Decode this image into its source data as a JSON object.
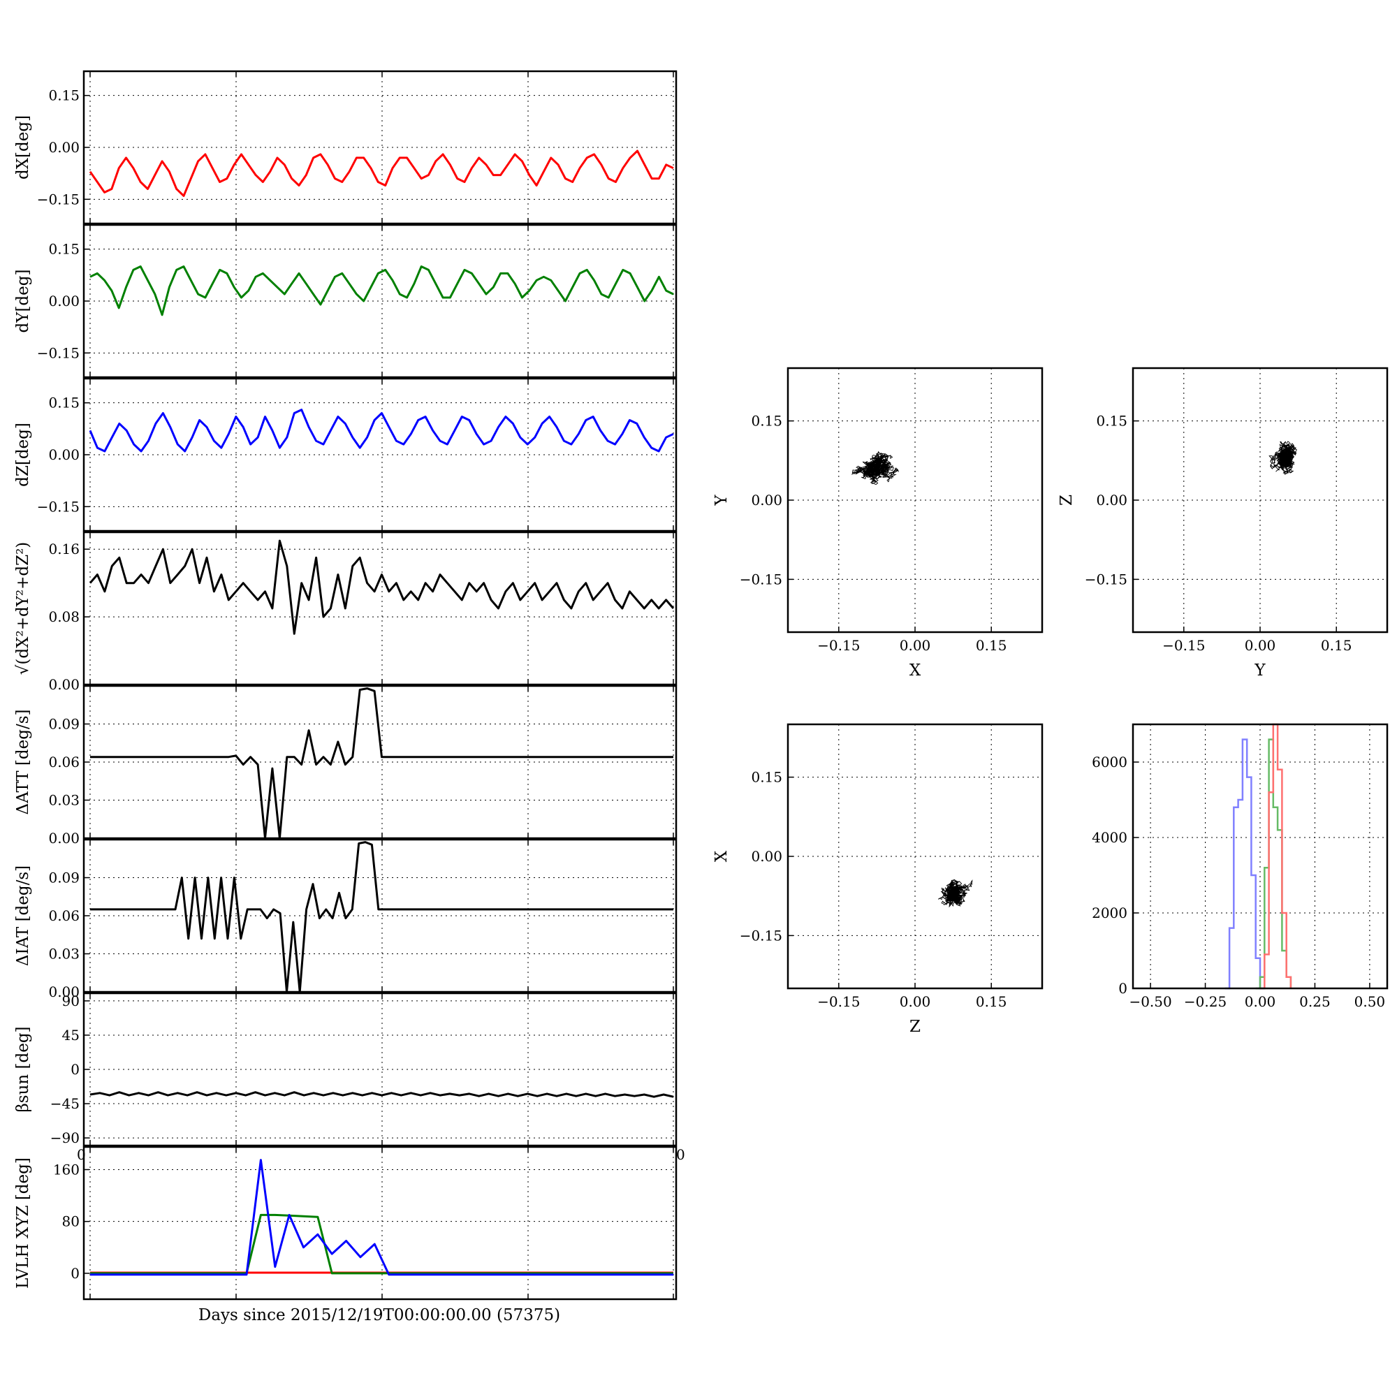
{
  "figure": {
    "xlabel_text": "Days since 2015/12/19T00:00:00.00 (57375)",
    "overlap_tick_left": "0",
    "overlap_tick_right": "0"
  },
  "chart_data": [
    {
      "id": "dX",
      "type": "line",
      "ylabel": "dX[deg]",
      "ylim": [
        -0.22,
        0.22
      ],
      "yticks": [
        0.15,
        0.0,
        -0.15
      ],
      "ytick_labels": [
        "0.15",
        "0.00",
        "−0.15"
      ],
      "grid": true,
      "color": "#ff0000",
      "series": [
        {
          "color": "#ff0000",
          "y": [
            -0.07,
            -0.1,
            -0.13,
            -0.12,
            -0.06,
            -0.03,
            -0.06,
            -0.1,
            -0.12,
            -0.08,
            -0.04,
            -0.07,
            -0.12,
            -0.14,
            -0.09,
            -0.04,
            -0.02,
            -0.06,
            -0.1,
            -0.09,
            -0.05,
            -0.02,
            -0.05,
            -0.08,
            -0.1,
            -0.07,
            -0.03,
            -0.05,
            -0.09,
            -0.11,
            -0.08,
            -0.03,
            -0.02,
            -0.05,
            -0.09,
            -0.1,
            -0.07,
            -0.03,
            -0.03,
            -0.06,
            -0.1,
            -0.11,
            -0.06,
            -0.03,
            -0.03,
            -0.06,
            -0.09,
            -0.08,
            -0.04,
            -0.02,
            -0.05,
            -0.09,
            -0.1,
            -0.06,
            -0.03,
            -0.05,
            -0.08,
            -0.08,
            -0.05,
            -0.02,
            -0.04,
            -0.08,
            -0.11,
            -0.07,
            -0.03,
            -0.05,
            -0.09,
            -0.1,
            -0.06,
            -0.03,
            -0.02,
            -0.05,
            -0.09,
            -0.1,
            -0.06,
            -0.03,
            -0.01,
            -0.05,
            -0.09,
            -0.09,
            -0.05,
            -0.06
          ]
        }
      ]
    },
    {
      "id": "dY",
      "type": "line",
      "ylabel": "dY[deg]",
      "ylim": [
        -0.22,
        0.22
      ],
      "yticks": [
        0.15,
        0.0,
        -0.15
      ],
      "ytick_labels": [
        "0.15",
        "0.00",
        "−0.15"
      ],
      "grid": true,
      "color": "#008000",
      "series": [
        {
          "color": "#008000",
          "y": [
            0.07,
            0.08,
            0.06,
            0.03,
            -0.02,
            0.04,
            0.09,
            0.1,
            0.06,
            0.02,
            -0.04,
            0.04,
            0.09,
            0.1,
            0.06,
            0.02,
            0.01,
            0.05,
            0.09,
            0.08,
            0.04,
            0.01,
            0.03,
            0.07,
            0.08,
            0.06,
            0.04,
            0.02,
            0.05,
            0.08,
            0.05,
            0.02,
            -0.01,
            0.03,
            0.07,
            0.08,
            0.05,
            0.02,
            0.0,
            0.04,
            0.08,
            0.09,
            0.06,
            0.02,
            0.01,
            0.05,
            0.1,
            0.09,
            0.05,
            0.01,
            0.01,
            0.05,
            0.09,
            0.08,
            0.05,
            0.02,
            0.04,
            0.08,
            0.08,
            0.05,
            0.01,
            0.03,
            0.06,
            0.07,
            0.06,
            0.03,
            0.0,
            0.04,
            0.08,
            0.09,
            0.06,
            0.02,
            0.01,
            0.05,
            0.09,
            0.08,
            0.04,
            0.0,
            0.03,
            0.07,
            0.03,
            0.02
          ]
        }
      ]
    },
    {
      "id": "dZ",
      "type": "line",
      "ylabel": "dZ[deg]",
      "ylim": [
        -0.22,
        0.22
      ],
      "yticks": [
        0.15,
        0.0,
        -0.15
      ],
      "ytick_labels": [
        "0.15",
        "0.00",
        "−0.15"
      ],
      "grid": true,
      "color": "#0000ff",
      "series": [
        {
          "color": "#0000ff",
          "y": [
            0.07,
            0.02,
            0.01,
            0.05,
            0.09,
            0.07,
            0.03,
            0.01,
            0.04,
            0.09,
            0.12,
            0.08,
            0.03,
            0.01,
            0.05,
            0.1,
            0.08,
            0.04,
            0.02,
            0.06,
            0.11,
            0.08,
            0.03,
            0.05,
            0.11,
            0.07,
            0.02,
            0.05,
            0.12,
            0.13,
            0.08,
            0.04,
            0.03,
            0.07,
            0.11,
            0.09,
            0.05,
            0.02,
            0.05,
            0.1,
            0.12,
            0.08,
            0.04,
            0.03,
            0.06,
            0.1,
            0.11,
            0.07,
            0.04,
            0.03,
            0.07,
            0.11,
            0.1,
            0.06,
            0.03,
            0.04,
            0.08,
            0.11,
            0.09,
            0.05,
            0.03,
            0.05,
            0.09,
            0.11,
            0.08,
            0.04,
            0.03,
            0.06,
            0.1,
            0.11,
            0.07,
            0.04,
            0.03,
            0.06,
            0.1,
            0.09,
            0.05,
            0.02,
            0.01,
            0.05,
            0.06
          ]
        }
      ]
    },
    {
      "id": "dRSS",
      "type": "line",
      "ylabel": "√(dX²+dY²+dZ²)",
      "ylim": [
        0.0,
        0.18
      ],
      "yticks": [
        0.16,
        0.08,
        0.0
      ],
      "ytick_labels": [
        "0.16",
        "0.08",
        "0.00"
      ],
      "grid": true,
      "color": "#000000",
      "series": [
        {
          "color": "#000000",
          "y": [
            0.12,
            0.13,
            0.11,
            0.14,
            0.15,
            0.12,
            0.12,
            0.13,
            0.12,
            0.14,
            0.16,
            0.12,
            0.13,
            0.14,
            0.16,
            0.12,
            0.15,
            0.11,
            0.13,
            0.1,
            0.11,
            0.12,
            0.11,
            0.1,
            0.11,
            0.09,
            0.17,
            0.14,
            0.06,
            0.12,
            0.1,
            0.15,
            0.08,
            0.09,
            0.13,
            0.09,
            0.14,
            0.15,
            0.12,
            0.11,
            0.13,
            0.11,
            0.12,
            0.1,
            0.11,
            0.1,
            0.12,
            0.11,
            0.13,
            0.12,
            0.11,
            0.1,
            0.12,
            0.11,
            0.12,
            0.1,
            0.09,
            0.11,
            0.12,
            0.1,
            0.11,
            0.12,
            0.1,
            0.11,
            0.12,
            0.1,
            0.09,
            0.11,
            0.12,
            0.1,
            0.11,
            0.12,
            0.1,
            0.09,
            0.11,
            0.1,
            0.09,
            0.1,
            0.09,
            0.1,
            0.09
          ]
        }
      ]
    },
    {
      "id": "dATT",
      "type": "line",
      "ylabel": "ΔATT [deg/s]",
      "ylim": [
        0.0,
        0.12
      ],
      "yticks": [
        0.09,
        0.06,
        0.03,
        0.0
      ],
      "ytick_labels": [
        "0.09",
        "0.06",
        "0.03",
        "0.00"
      ],
      "grid": true,
      "color": "#000000",
      "series": [
        {
          "color": "#000000",
          "y": [
            0.064,
            0.064,
            0.064,
            0.064,
            0.064,
            0.064,
            0.064,
            0.064,
            0.064,
            0.064,
            0.064,
            0.064,
            0.064,
            0.064,
            0.064,
            0.064,
            0.064,
            0.064,
            0.064,
            0.064,
            0.065,
            0.058,
            0.064,
            0.058,
            0.0,
            0.055,
            0.0,
            0.064,
            0.064,
            0.058,
            0.085,
            0.058,
            0.064,
            0.058,
            0.076,
            0.058,
            0.064,
            0.117,
            0.118,
            0.116,
            0.064,
            0.064,
            0.064,
            0.064,
            0.064,
            0.064,
            0.064,
            0.064,
            0.064,
            0.064,
            0.064,
            0.064,
            0.064,
            0.064,
            0.064,
            0.064,
            0.064,
            0.064,
            0.064,
            0.064,
            0.064,
            0.064,
            0.064,
            0.064,
            0.064,
            0.064,
            0.064,
            0.064,
            0.064,
            0.064,
            0.064,
            0.064,
            0.064,
            0.064,
            0.064,
            0.064,
            0.064,
            0.064,
            0.064,
            0.064,
            0.064
          ]
        }
      ]
    },
    {
      "id": "dIAT",
      "type": "line",
      "ylabel": "ΔIAT [deg/s]",
      "ylim": [
        0.0,
        0.12
      ],
      "yticks": [
        0.09,
        0.06,
        0.03,
        0.0
      ],
      "ytick_labels": [
        "0.09",
        "0.06",
        "0.03",
        "0.00"
      ],
      "grid": true,
      "color": "#000000",
      "series": [
        {
          "color": "#000000",
          "y": [
            0.065,
            0.065,
            0.065,
            0.065,
            0.065,
            0.065,
            0.065,
            0.065,
            0.065,
            0.065,
            0.065,
            0.065,
            0.065,
            0.065,
            0.09,
            0.042,
            0.09,
            0.042,
            0.09,
            0.042,
            0.09,
            0.042,
            0.09,
            0.042,
            0.065,
            0.065,
            0.065,
            0.058,
            0.065,
            0.062,
            0.0,
            0.055,
            0.0,
            0.065,
            0.085,
            0.058,
            0.065,
            0.058,
            0.078,
            0.058,
            0.065,
            0.117,
            0.118,
            0.116,
            0.065,
            0.065,
            0.065,
            0.065,
            0.065,
            0.065,
            0.065,
            0.065,
            0.065,
            0.065,
            0.065,
            0.065,
            0.065,
            0.065,
            0.065,
            0.065,
            0.065,
            0.065,
            0.065,
            0.065,
            0.065,
            0.065,
            0.065,
            0.065,
            0.065,
            0.065,
            0.065,
            0.065,
            0.065,
            0.065,
            0.065,
            0.065,
            0.065,
            0.065,
            0.065,
            0.065,
            0.065,
            0.065,
            0.065,
            0.065,
            0.065,
            0.065,
            0.065,
            0.065,
            0.065,
            0.065
          ]
        }
      ]
    },
    {
      "id": "beta",
      "type": "line",
      "ylabel": "βsun [deg]",
      "ylim": [
        -100,
        100
      ],
      "yticks": [
        90,
        45,
        0,
        -45,
        -90
      ],
      "ytick_labels": [
        "90",
        "45",
        "0",
        "−45",
        "−90"
      ],
      "grid": true,
      "color": "#000000",
      "series": [
        {
          "color": "#000000",
          "y": [
            -33,
            -31,
            -34,
            -30,
            -34,
            -31,
            -34,
            -30,
            -34,
            -31,
            -34,
            -30,
            -34,
            -31,
            -34,
            -31,
            -34,
            -30,
            -34,
            -31,
            -34,
            -30,
            -34,
            -31,
            -34,
            -31,
            -34,
            -31,
            -34,
            -31,
            -34,
            -31,
            -34,
            -31,
            -34,
            -31,
            -34,
            -32,
            -34,
            -32,
            -35,
            -32,
            -35,
            -32,
            -35,
            -32,
            -35,
            -32,
            -35,
            -32,
            -35,
            -32,
            -35,
            -32,
            -35,
            -33,
            -35,
            -33,
            -36,
            -33,
            -36
          ]
        }
      ]
    },
    {
      "id": "lvlh",
      "type": "line",
      "ylabel": "LVLH XYZ [deg]",
      "ylim": [
        -40,
        195
      ],
      "yticks": [
        160,
        80,
        0
      ],
      "ytick_labels": [
        "160",
        "80",
        "0"
      ],
      "grid": true,
      "series": [
        {
          "color": "#ff0000",
          "y": [
            1,
            1,
            1,
            1,
            1,
            1,
            1,
            1,
            1,
            1,
            1,
            1,
            1,
            1,
            1,
            1,
            1,
            1,
            1,
            1,
            1,
            1,
            1,
            1,
            1,
            1,
            1,
            1,
            1,
            1,
            1,
            1,
            1,
            1,
            1,
            1,
            1,
            1,
            1,
            1,
            1,
            1
          ]
        },
        {
          "color": "#008000",
          "y": [
            0,
            0,
            0,
            0,
            0,
            0,
            0,
            0,
            0,
            0,
            0,
            0,
            90,
            90,
            89,
            88,
            87,
            0,
            0,
            0,
            0,
            0,
            0,
            0,
            0,
            0,
            0,
            0,
            0,
            0,
            0,
            0,
            0,
            0,
            0,
            0,
            0,
            0,
            0,
            0,
            0,
            0
          ]
        },
        {
          "color": "#0000ff",
          "y": [
            -2,
            -2,
            -2,
            -2,
            -2,
            -2,
            -2,
            -2,
            -2,
            -2,
            -2,
            -2,
            175,
            10,
            90,
            40,
            60,
            30,
            50,
            25,
            45,
            -2,
            -2,
            -2,
            -2,
            -2,
            -2,
            -2,
            -2,
            -2,
            -2,
            -2,
            -2,
            -2,
            -2,
            -2,
            -2,
            -2,
            -2,
            -2,
            -2,
            -2
          ]
        }
      ]
    },
    {
      "id": "scatterXY",
      "type": "scatter",
      "xlabel": "X",
      "ylabel": "Y",
      "xlim": [
        -0.25,
        0.25
      ],
      "ylim": [
        -0.25,
        0.25
      ],
      "ticks": [
        -0.15,
        0.0,
        0.15
      ],
      "tick_labels": [
        "−0.15",
        "0.00",
        "0.15"
      ],
      "grid": true,
      "color": "#000000",
      "cloud": {
        "center": [
          -0.08,
          0.06
        ],
        "spread": [
          0.04,
          0.03
        ]
      }
    },
    {
      "id": "scatterYZ",
      "type": "scatter",
      "xlabel": "Y",
      "ylabel": "Z",
      "xlim": [
        -0.25,
        0.25
      ],
      "ylim": [
        -0.25,
        0.25
      ],
      "ticks": [
        -0.15,
        0.0,
        0.15
      ],
      "tick_labels": [
        "−0.15",
        "0.00",
        "0.15"
      ],
      "grid": true,
      "color": "#000000",
      "cloud": {
        "center": [
          0.05,
          0.08
        ],
        "spread": [
          0.03,
          0.03
        ]
      }
    },
    {
      "id": "scatterZX",
      "type": "scatter",
      "xlabel": "Z",
      "ylabel": "X",
      "xlim": [
        -0.25,
        0.25
      ],
      "ylim": [
        -0.25,
        0.25
      ],
      "ticks": [
        -0.15,
        0.0,
        0.15
      ],
      "tick_labels": [
        "−0.15",
        "0.00",
        "0.15"
      ],
      "grid": true,
      "color": "#000000",
      "cloud": {
        "center": [
          0.08,
          -0.07
        ],
        "spread": [
          0.03,
          0.03
        ]
      }
    },
    {
      "id": "hist",
      "type": "histogram",
      "xlim": [
        -0.58,
        0.58
      ],
      "ylim": [
        0,
        7000
      ],
      "xticks": [
        -0.5,
        -0.25,
        0.0,
        0.25,
        0.5
      ],
      "xtick_labels": [
        "−0.50",
        "−0.25",
        "0.00",
        "0.25",
        "0.50"
      ],
      "yticks": [
        6000,
        4000,
        2000,
        0
      ],
      "ytick_labels": [
        "6000",
        "4000",
        "2000",
        "0"
      ],
      "grid": true,
      "series": [
        {
          "color": "#8080ff",
          "x": [
            -0.16,
            -0.14,
            -0.12,
            -0.1,
            -0.08,
            -0.06,
            -0.04,
            -0.02,
            0.0,
            0.02
          ],
          "y": [
            0,
            1600,
            4800,
            5000,
            6600,
            5600,
            3000,
            800,
            0,
            0
          ]
        },
        {
          "color": "#66bb66",
          "x": [
            -0.02,
            0.0,
            0.02,
            0.04,
            0.06,
            0.08,
            0.1,
            0.12,
            0.14
          ],
          "y": [
            0,
            300,
            3200,
            6600,
            4800,
            4200,
            1000,
            300,
            0
          ]
        },
        {
          "color": "#ff7070",
          "x": [
            0.0,
            0.02,
            0.04,
            0.06,
            0.08,
            0.1,
            0.12,
            0.14
          ],
          "y": [
            0,
            900,
            5200,
            7000,
            5800,
            2000,
            300,
            0
          ]
        }
      ]
    }
  ]
}
